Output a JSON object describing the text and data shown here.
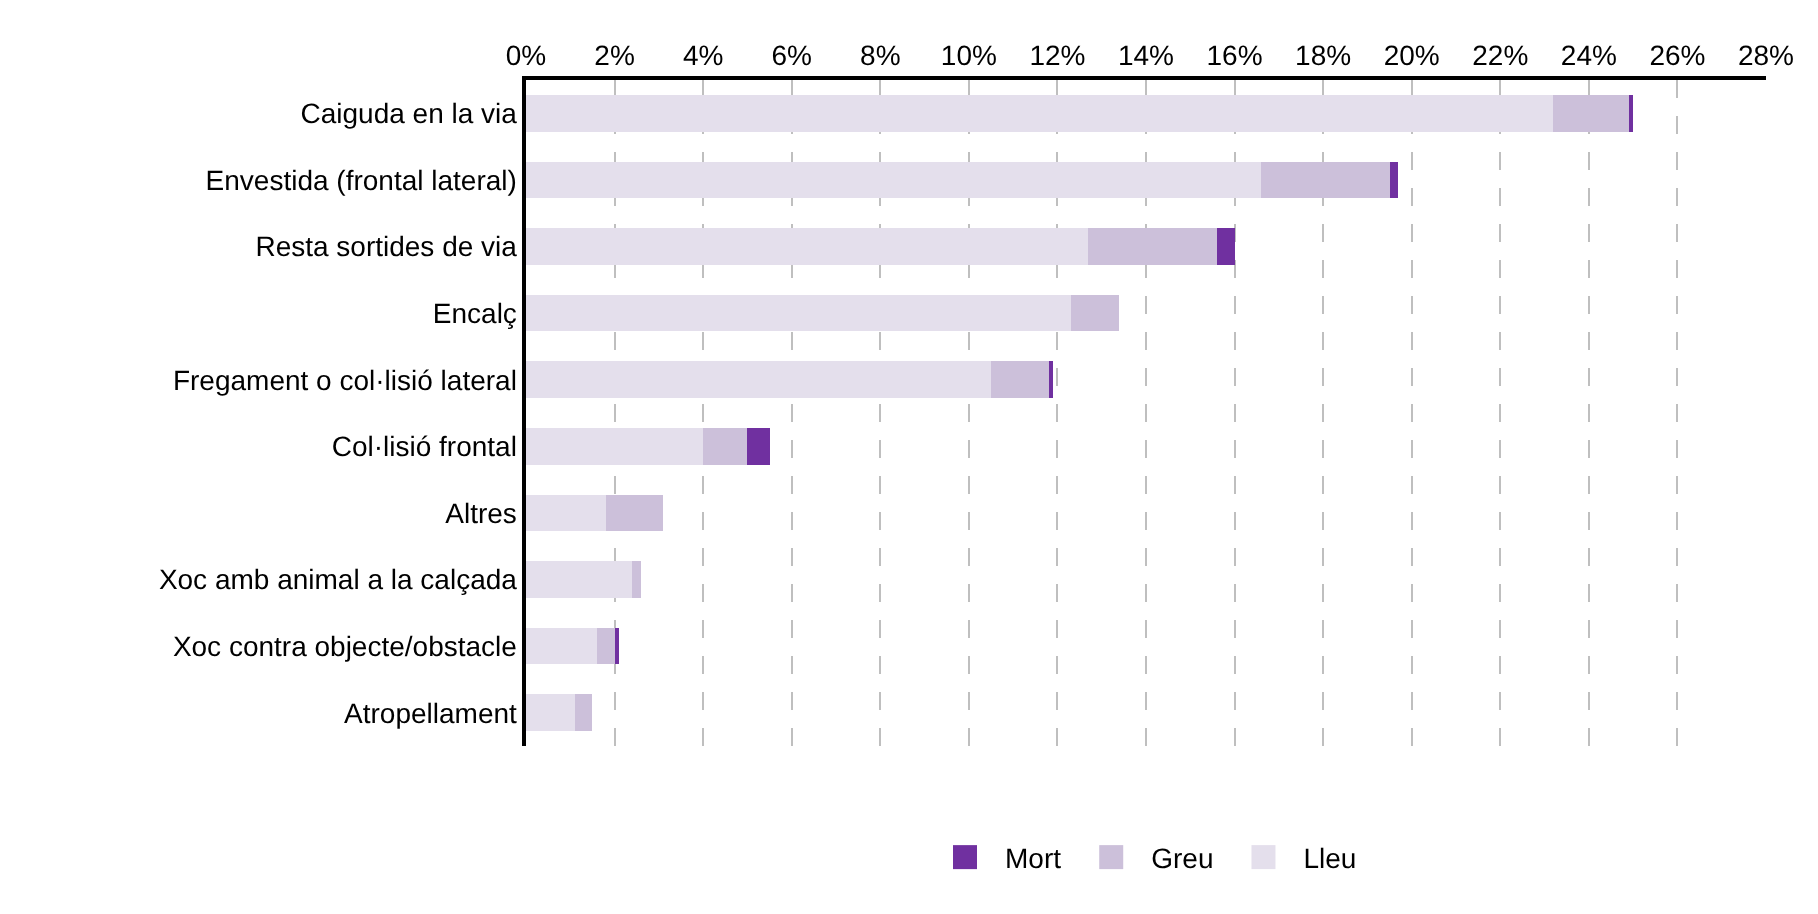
{
  "chart_data": {
    "type": "bar",
    "orientation": "horizontal",
    "stacked": true,
    "categories": [
      "Caiguda en la via",
      "Envestida (frontal lateral)",
      "Resta sortides de via",
      "Encalç",
      "Fregament o col·lisió lateral",
      "Col·lisió frontal",
      "Altres",
      "Xoc amb animal a la calçada",
      "Xoc contra objecte/obstacle",
      "Atropellament"
    ],
    "series": [
      {
        "name": "Lleu",
        "color": "#e4dfec",
        "values": [
          23.2,
          16.6,
          12.7,
          12.3,
          10.5,
          4.0,
          1.8,
          2.4,
          1.6,
          1.1
        ]
      },
      {
        "name": "Greu",
        "color": "#ccc0da",
        "values": [
          1.7,
          2.9,
          2.9,
          1.1,
          1.3,
          1.0,
          1.3,
          0.2,
          0.4,
          0.4
        ]
      },
      {
        "name": "Mort",
        "color": "#7030a0",
        "values": [
          0.1,
          0.2,
          0.4,
          0,
          0.1,
          0.5,
          0,
          0,
          0.1,
          0
        ]
      }
    ],
    "xlim": [
      0,
      28
    ],
    "xticks": [
      {
        "value": 0,
        "label": "0%"
      },
      {
        "value": 2,
        "label": "2%"
      },
      {
        "value": 4,
        "label": "4%"
      },
      {
        "value": 6,
        "label": "6%"
      },
      {
        "value": 8,
        "label": "8%"
      },
      {
        "value": 10,
        "label": "10%"
      },
      {
        "value": 12,
        "label": "12%"
      },
      {
        "value": 14,
        "label": "14%"
      },
      {
        "value": 16,
        "label": "16%"
      },
      {
        "value": 18,
        "label": "18%"
      },
      {
        "value": 20,
        "label": "20%"
      },
      {
        "value": 22,
        "label": "22%"
      },
      {
        "value": 24,
        "label": "24%"
      },
      {
        "value": 26,
        "label": "26%"
      },
      {
        "value": 28,
        "label": "28%"
      }
    ],
    "grid": "x",
    "line_style": "dashed",
    "legend": "bottom"
  }
}
